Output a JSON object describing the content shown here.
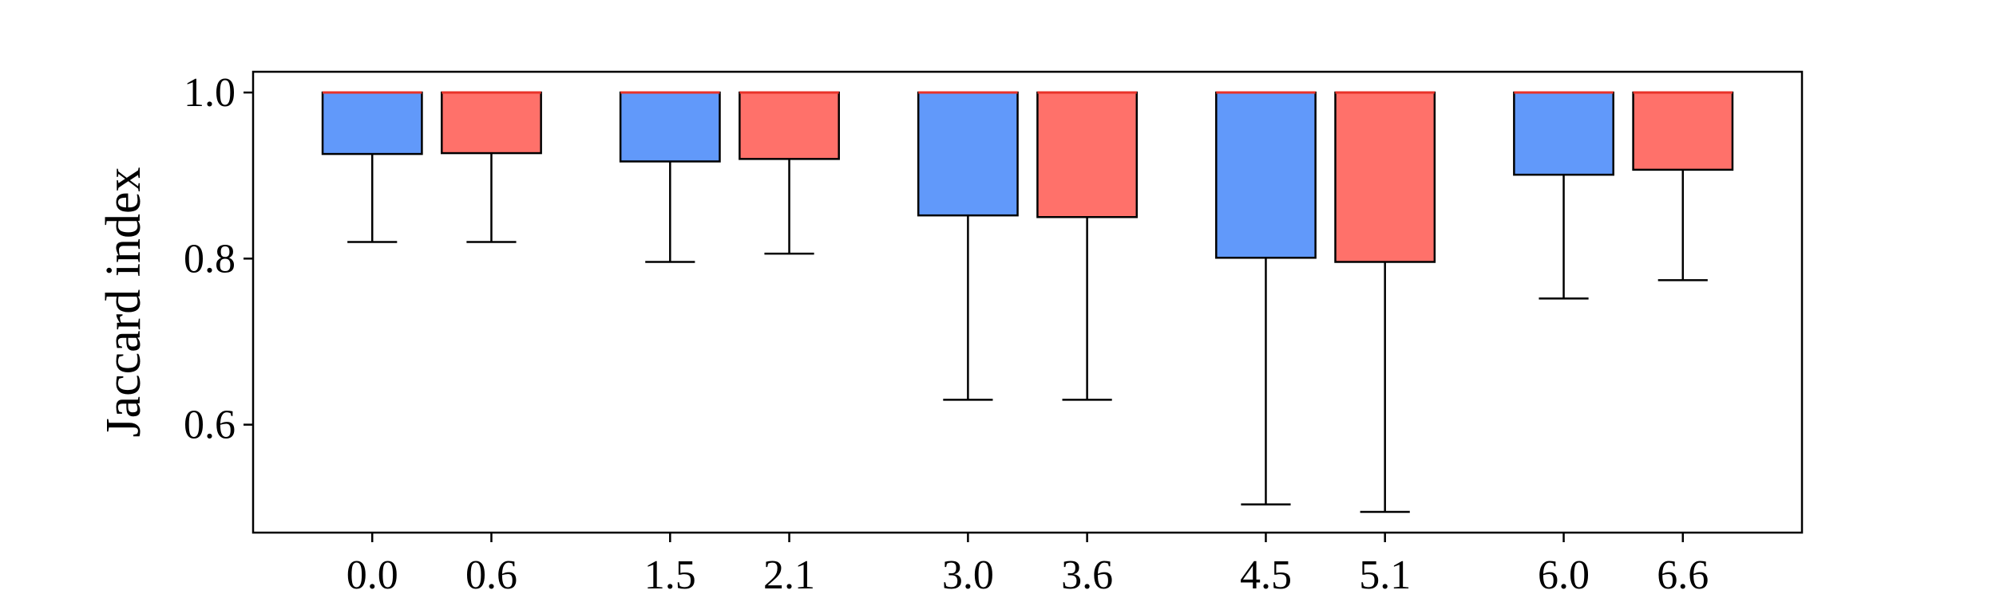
{
  "chart_data": {
    "type": "box",
    "ylabel": "Jaccard index",
    "xlabel": "",
    "ylim": [
      0.47,
      1.025
    ],
    "yticks": [
      0.6,
      0.8,
      1.0
    ],
    "ytick_labels": [
      "0.6",
      "0.8",
      "1.0"
    ],
    "xlim": [
      -0.6,
      7.2
    ],
    "grid": false,
    "colors": {
      "blue": "#6199FA",
      "red": "#FF716A",
      "median": "#E8332A",
      "edge": "#000000"
    },
    "boxes": [
      {
        "x": 0.0,
        "label": "0.0",
        "color": "blue",
        "whisker_low": 0.82,
        "q1": 0.926,
        "median": 1.0,
        "q3": 1.0,
        "whisker_high": 1.0
      },
      {
        "x": 0.6,
        "label": "0.6",
        "color": "red",
        "whisker_low": 0.82,
        "q1": 0.927,
        "median": 1.0,
        "q3": 1.0,
        "whisker_high": 1.0
      },
      {
        "x": 1.5,
        "label": "1.5",
        "color": "blue",
        "whisker_low": 0.796,
        "q1": 0.917,
        "median": 1.0,
        "q3": 1.0,
        "whisker_high": 1.0
      },
      {
        "x": 2.1,
        "label": "2.1",
        "color": "red",
        "whisker_low": 0.806,
        "q1": 0.92,
        "median": 1.0,
        "q3": 1.0,
        "whisker_high": 1.0
      },
      {
        "x": 3.0,
        "label": "3.0",
        "color": "blue",
        "whisker_low": 0.63,
        "q1": 0.852,
        "median": 1.0,
        "q3": 1.0,
        "whisker_high": 1.0
      },
      {
        "x": 3.6,
        "label": "3.6",
        "color": "red",
        "whisker_low": 0.63,
        "q1": 0.85,
        "median": 1.0,
        "q3": 1.0,
        "whisker_high": 1.0
      },
      {
        "x": 4.5,
        "label": "4.5",
        "color": "blue",
        "whisker_low": 0.504,
        "q1": 0.801,
        "median": 1.0,
        "q3": 1.0,
        "whisker_high": 1.0
      },
      {
        "x": 5.1,
        "label": "5.1",
        "color": "red",
        "whisker_low": 0.495,
        "q1": 0.796,
        "median": 1.0,
        "q3": 1.0,
        "whisker_high": 1.0
      },
      {
        "x": 6.0,
        "label": "6.0",
        "color": "blue",
        "whisker_low": 0.752,
        "q1": 0.901,
        "median": 1.0,
        "q3": 1.0,
        "whisker_high": 1.0
      },
      {
        "x": 6.6,
        "label": "6.6",
        "color": "red",
        "whisker_low": 0.774,
        "q1": 0.907,
        "median": 1.0,
        "q3": 1.0,
        "whisker_high": 1.0
      }
    ]
  }
}
